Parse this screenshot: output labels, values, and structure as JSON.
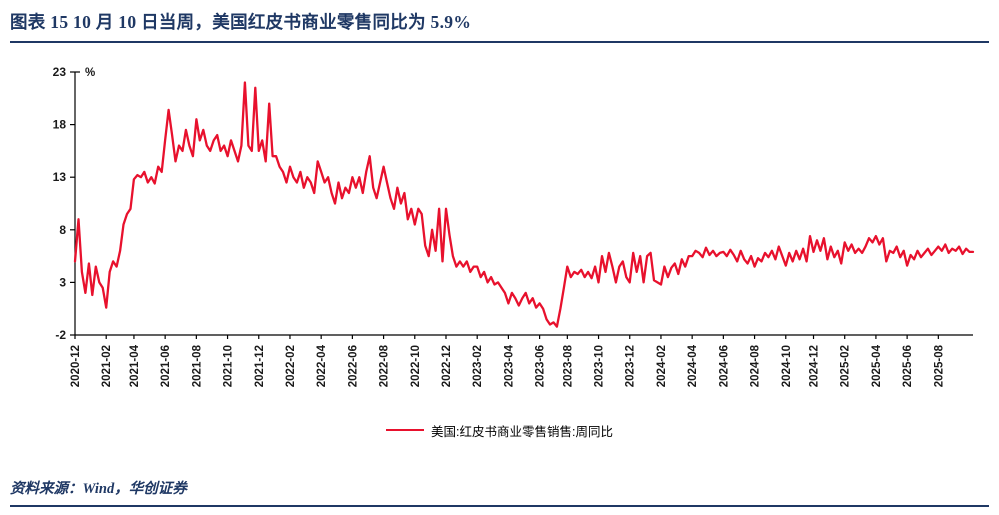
{
  "header": {
    "title": "图表 15  10 月 10 日当周，美国红皮书商业零售同比为 5.9%"
  },
  "footer": {
    "source": "资料来源：Wind，华创证券"
  },
  "legend": {
    "label": "美国:红皮书商业零售销售:周同比"
  },
  "colors": {
    "accent_navy": "#1f3864",
    "line_red": "#e8112d",
    "axis": "#000000",
    "tick_text": "#1a1a1a"
  },
  "chart_data": {
    "type": "line",
    "title": "美国红皮书商业零售同比",
    "xlabel": "",
    "ylabel": "%",
    "ylim": [
      -2,
      23
    ],
    "yticks": [
      -2,
      3,
      8,
      13,
      18,
      23
    ],
    "grid": false,
    "legend_position": "bottom",
    "x_ticks": [
      {
        "label": "2020-12",
        "week": 0
      },
      {
        "label": "2021-02",
        "week": 9
      },
      {
        "label": "2021-04",
        "week": 17
      },
      {
        "label": "2021-06",
        "week": 26
      },
      {
        "label": "2021-08",
        "week": 35
      },
      {
        "label": "2021-10",
        "week": 44
      },
      {
        "label": "2021-12",
        "week": 53
      },
      {
        "label": "2022-02",
        "week": 62
      },
      {
        "label": "2022-04",
        "week": 71
      },
      {
        "label": "2022-06",
        "week": 80
      },
      {
        "label": "2022-08",
        "week": 89
      },
      {
        "label": "2022-10",
        "week": 98
      },
      {
        "label": "2022-12",
        "week": 107
      },
      {
        "label": "2023-02",
        "week": 116
      },
      {
        "label": "2023-04",
        "week": 125
      },
      {
        "label": "2023-06",
        "week": 134
      },
      {
        "label": "2023-08",
        "week": 142
      },
      {
        "label": "2023-10",
        "week": 151
      },
      {
        "label": "2023-12",
        "week": 160
      },
      {
        "label": "2024-02",
        "week": 169
      },
      {
        "label": "2024-04",
        "week": 178
      },
      {
        "label": "2024-06",
        "week": 187
      },
      {
        "label": "2024-08",
        "week": 196
      },
      {
        "label": "2024-10",
        "week": 205
      },
      {
        "label": "2024-12",
        "week": 213
      },
      {
        "label": "2025-02",
        "week": 222
      },
      {
        "label": "2025-04",
        "week": 231
      },
      {
        "label": "2025-06",
        "week": 240
      },
      {
        "label": "2025-08",
        "week": 249
      }
    ],
    "series": [
      {
        "name": "美国:红皮书商业零售销售:周同比",
        "color": "#e8112d",
        "values": [
          5.0,
          9.0,
          4.0,
          2.0,
          4.8,
          1.8,
          4.5,
          3.0,
          2.5,
          0.6,
          4.0,
          5.0,
          4.5,
          6.0,
          8.5,
          9.5,
          10.0,
          12.8,
          13.2,
          13.0,
          13.5,
          12.5,
          13.0,
          12.4,
          14.0,
          13.5,
          16.5,
          19.4,
          17.0,
          14.5,
          16.0,
          15.5,
          17.5,
          16.0,
          15.0,
          18.5,
          16.5,
          17.5,
          16.0,
          15.5,
          16.5,
          17.0,
          15.5,
          16.0,
          15.0,
          16.5,
          15.5,
          14.5,
          16.0,
          22.0,
          16.0,
          15.5,
          21.5,
          15.5,
          16.5,
          14.5,
          20.0,
          15.0,
          15.0,
          14.0,
          13.5,
          12.5,
          14.0,
          13.0,
          12.5,
          13.5,
          12.0,
          13.0,
          12.5,
          11.5,
          14.5,
          13.5,
          12.5,
          13.0,
          11.5,
          10.5,
          12.5,
          11.0,
          12.0,
          11.5,
          13.0,
          12.0,
          13.0,
          11.5,
          13.5,
          15.0,
          12.0,
          11.0,
          12.5,
          14.0,
          12.5,
          11.0,
          10.0,
          12.0,
          10.5,
          11.5,
          9.0,
          10.0,
          8.5,
          10.0,
          9.5,
          6.5,
          5.5,
          8.0,
          6.0,
          10.0,
          5.0,
          10.0,
          7.5,
          5.5,
          4.5,
          5.0,
          4.5,
          5.0,
          4.0,
          4.5,
          4.5,
          3.5,
          4.0,
          3.0,
          3.5,
          2.8,
          3.0,
          2.5,
          2.0,
          1.0,
          2.0,
          1.5,
          0.8,
          1.5,
          2.0,
          1.0,
          1.5,
          0.6,
          1.0,
          0.5,
          -0.5,
          -1.0,
          -0.8,
          -1.2,
          0.5,
          2.5,
          4.5,
          3.5,
          4.0,
          3.8,
          4.2,
          3.5,
          4.0,
          3.4,
          4.5,
          3.0,
          5.5,
          4.0,
          5.8,
          4.5,
          3.0,
          4.5,
          5.0,
          3.5,
          3.0,
          5.8,
          4.0,
          5.5,
          3.0,
          5.5,
          5.8,
          3.2,
          3.0,
          2.8,
          4.5,
          3.5,
          4.4,
          4.8,
          3.8,
          5.2,
          4.5,
          5.5,
          5.5,
          6.0,
          5.8,
          5.4,
          6.3,
          5.6,
          6.0,
          5.5,
          5.8,
          5.9,
          5.5,
          6.1,
          5.6,
          5.0,
          6.0,
          5.2,
          4.8,
          5.5,
          4.5,
          5.3,
          5.0,
          5.8,
          5.4,
          6.0,
          5.2,
          6.4,
          5.5,
          4.6,
          5.8,
          5.0,
          6.0,
          5.2,
          6.2,
          5.0,
          7.4,
          5.9,
          7.0,
          6.0,
          7.2,
          5.2,
          6.4,
          5.4,
          6.0,
          4.8,
          6.8,
          6.0,
          6.6,
          5.8,
          6.2,
          5.8,
          6.4,
          7.2,
          6.8,
          7.4,
          6.6,
          7.2,
          5.0,
          6.0,
          5.8,
          6.4,
          5.4,
          6.0,
          4.6,
          5.6,
          5.2,
          6.0,
          5.4,
          5.8,
          6.2,
          5.6,
          6.0,
          6.4,
          6.0,
          6.6,
          5.8,
          6.2,
          6.0,
          6.4,
          5.7,
          6.2,
          5.9,
          5.9
        ]
      }
    ]
  }
}
